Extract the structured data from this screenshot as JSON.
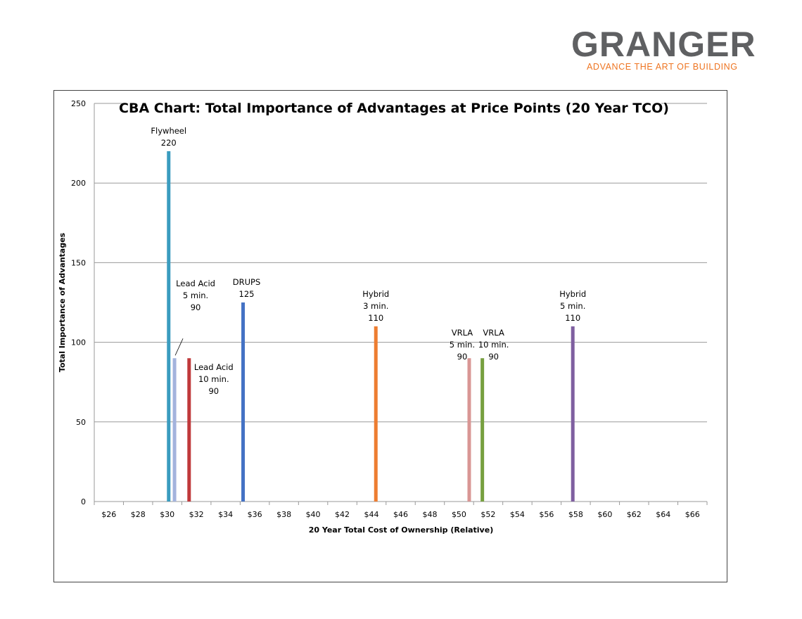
{
  "logo": {
    "word": "GRANGER",
    "tagline": "ADVANCE THE ART OF BUILDING",
    "brand_gray": "#5f6062",
    "brand_orange": "#ee7421"
  },
  "chart_data": {
    "type": "bar",
    "title": "CBA Chart: Total Importance of Advantages at Price Points (20 Year TCO)",
    "xlabel": "20 Year Total Cost of Ownership (Relative)",
    "ylabel": "Total Importance of Advantages",
    "x_ticks": [
      "$26",
      "$28",
      "$30",
      "$32",
      "$34",
      "$36",
      "$38",
      "$40",
      "$42",
      "$44",
      "$46",
      "$48",
      "$50",
      "$52",
      "$54",
      "$56",
      "$58",
      "$60",
      "$62",
      "$64",
      "$66"
    ],
    "y_ticks": [
      0,
      50,
      100,
      150,
      200,
      250
    ],
    "ylim": [
      0,
      250
    ],
    "xlim": [
      26,
      66
    ],
    "grid": true,
    "series": [
      {
        "name": "Flywheel",
        "label_lines": [
          "Flywheel",
          "220"
        ],
        "x": 30.1,
        "value": 220,
        "color": "#3a9cbf"
      },
      {
        "name": "Lead Acid 5 min.",
        "label_lines": [
          "Lead Acid",
          "5 min.",
          "90"
        ],
        "x": 30.5,
        "value": 90,
        "color": "#a3b3dd"
      },
      {
        "name": "Lead Acid 10 min.",
        "label_lines": [
          "Lead Acid",
          "10 min.",
          "90"
        ],
        "x": 31.5,
        "value": 90,
        "color": "#c0393b"
      },
      {
        "name": "DRUPS",
        "label_lines": [
          "DRUPS",
          "125"
        ],
        "x": 35.2,
        "value": 125,
        "color": "#4472c4"
      },
      {
        "name": "Hybrid 3 min.",
        "label_lines": [
          "Hybrid",
          "3 min.",
          "110"
        ],
        "x": 44.3,
        "value": 110,
        "color": "#ed7d31"
      },
      {
        "name": "VRLA 5 min.",
        "label_lines": [
          "VRLA",
          "5 min.",
          "90"
        ],
        "x": 50.7,
        "value": 90,
        "color": "#d99694"
      },
      {
        "name": "VRLA 10 min.",
        "label_lines": [
          "VRLA",
          "10 min.",
          "90"
        ],
        "x": 51.6,
        "value": 90,
        "color": "#77a040"
      },
      {
        "name": "Hybrid 5 min.",
        "label_lines": [
          "Hybrid",
          "5 min.",
          "110"
        ],
        "x": 57.8,
        "value": 110,
        "color": "#7f5fa0"
      }
    ]
  }
}
